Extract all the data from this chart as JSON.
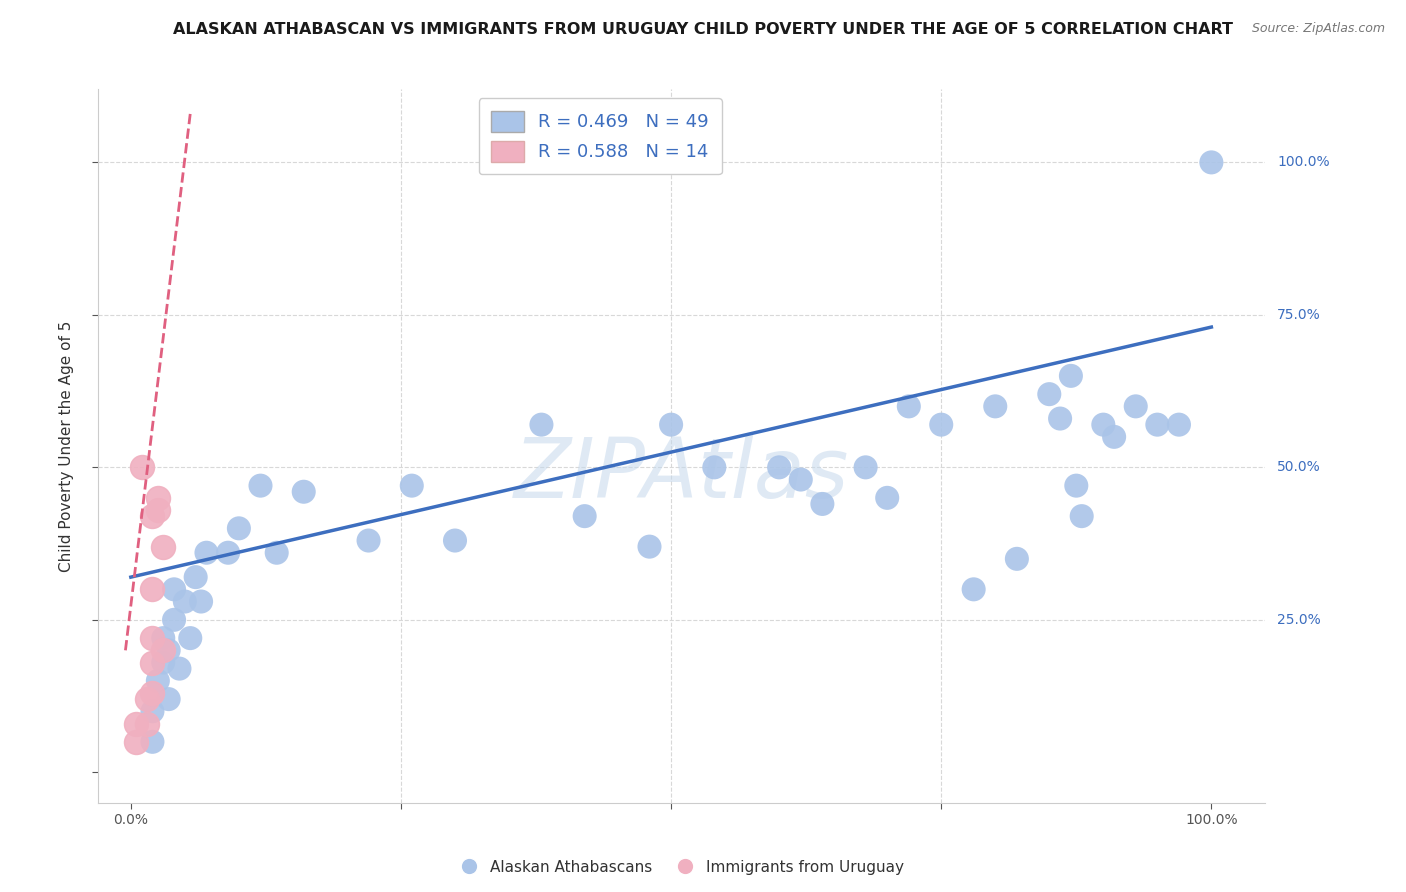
{
  "title": "ALASKAN ATHABASCAN VS IMMIGRANTS FROM URUGUAY CHILD POVERTY UNDER THE AGE OF 5 CORRELATION CHART",
  "source": "Source: ZipAtlas.com",
  "ylabel": "Child Poverty Under the Age of 5",
  "watermark": "ZIPAtlas",
  "blue_R": "R = 0.469",
  "blue_N": "N = 49",
  "pink_R": "R = 0.588",
  "pink_N": "N = 14",
  "blue_color": "#aac4e8",
  "pink_color": "#f0b0c0",
  "blue_line_color": "#3d6ebf",
  "pink_line_color": "#e06080",
  "legend_blue_label": "Alaskan Athabascans",
  "legend_pink_label": "Immigrants from Uruguay",
  "blue_scatter_x": [
    0.02,
    0.02,
    0.025,
    0.03,
    0.03,
    0.035,
    0.035,
    0.04,
    0.04,
    0.045,
    0.05,
    0.055,
    0.06,
    0.065,
    0.07,
    0.09,
    0.1,
    0.12,
    0.135,
    0.16,
    0.22,
    0.26,
    0.3,
    0.38,
    0.42,
    0.48,
    0.5,
    0.54,
    0.6,
    0.62,
    0.64,
    0.68,
    0.7,
    0.72,
    0.75,
    0.78,
    0.8,
    0.82,
    0.85,
    0.86,
    0.87,
    0.875,
    0.88,
    0.9,
    0.91,
    0.93,
    0.95,
    0.97,
    1.0
  ],
  "blue_scatter_y": [
    0.05,
    0.1,
    0.15,
    0.18,
    0.22,
    0.12,
    0.2,
    0.25,
    0.3,
    0.17,
    0.28,
    0.22,
    0.32,
    0.28,
    0.36,
    0.36,
    0.4,
    0.47,
    0.36,
    0.46,
    0.38,
    0.47,
    0.38,
    0.57,
    0.42,
    0.37,
    0.57,
    0.5,
    0.5,
    0.48,
    0.44,
    0.5,
    0.45,
    0.6,
    0.57,
    0.3,
    0.6,
    0.35,
    0.62,
    0.58,
    0.65,
    0.47,
    0.42,
    0.57,
    0.55,
    0.6,
    0.57,
    0.57,
    1.0
  ],
  "pink_scatter_x": [
    0.005,
    0.005,
    0.01,
    0.015,
    0.015,
    0.02,
    0.02,
    0.02,
    0.02,
    0.02,
    0.025,
    0.025,
    0.03,
    0.03
  ],
  "pink_scatter_y": [
    0.08,
    0.05,
    0.5,
    0.12,
    0.08,
    0.18,
    0.13,
    0.22,
    0.3,
    0.42,
    0.43,
    0.45,
    0.37,
    0.2
  ],
  "blue_trendline_x": [
    0.0,
    1.0
  ],
  "blue_trendline_y": [
    0.32,
    0.73
  ],
  "pink_trendline_x": [
    -0.005,
    0.055
  ],
  "pink_trendline_y": [
    0.2,
    1.08
  ],
  "grid_color": "#d8d8d8",
  "bg_color": "#ffffff",
  "xlim": [
    -0.03,
    1.05
  ],
  "ylim": [
    -0.05,
    1.12
  ]
}
